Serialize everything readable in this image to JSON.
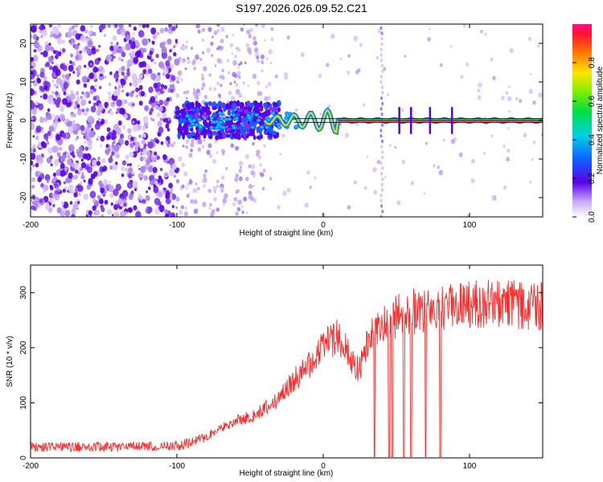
{
  "title": "S197.2026.026.09.52.C21",
  "chart_data": [
    {
      "type": "heatmap",
      "xlabel": "Height of straight line (km)",
      "ylabel": "Frequency (Hz)",
      "xlim": [
        -200,
        150
      ],
      "ylim": [
        -25,
        25
      ],
      "xticks": [
        "-200",
        "-100",
        "0",
        "100"
      ],
      "xtick_values": [
        -200,
        -100,
        0,
        100
      ],
      "yticks": [
        "-20",
        "-10",
        "0",
        "10",
        "20"
      ],
      "ytick_values": [
        -20,
        -10,
        0,
        10,
        20
      ],
      "colorbar": {
        "label": "Normalized spectral amplitude",
        "range": [
          0,
          1
        ],
        "ticks": [
          "0.0",
          "0.2",
          "0.4",
          "0.6",
          "0.8"
        ],
        "tick_values": [
          0,
          0.2,
          0.4,
          0.6,
          0.8
        ]
      },
      "features": {
        "signal_line_frequency_hz": 0,
        "signal_onset_height_km": -100,
        "strong_signal_from_km": -20,
        "interference_spike_km": 40
      }
    },
    {
      "type": "line",
      "xlabel": "Height of straight line (km)",
      "ylabel": "SNR (10 * v/v)",
      "xlim": [
        -200,
        150
      ],
      "ylim": [
        0,
        350
      ],
      "xticks": [
        "-200",
        "-100",
        "0",
        "100"
      ],
      "xtick_values": [
        -200,
        -100,
        0,
        100
      ],
      "yticks": [
        "0",
        "100",
        "200",
        "300"
      ],
      "ytick_values": [
        0,
        100,
        200,
        300
      ],
      "color": "#ff2a2a",
      "series": [
        {
          "name": "SNR",
          "x": [
            -200,
            -150,
            -100,
            -90,
            -80,
            -70,
            -60,
            -50,
            -40,
            -30,
            -20,
            -10,
            0,
            10,
            20,
            25,
            30,
            40,
            50,
            60,
            70,
            80,
            90,
            100,
            110,
            120,
            130,
            140,
            150
          ],
          "values": [
            20,
            20,
            22,
            28,
            38,
            55,
            68,
            75,
            88,
            110,
            140,
            170,
            200,
            220,
            175,
            160,
            210,
            240,
            258,
            265,
            270,
            275,
            275,
            278,
            280,
            280,
            278,
            276,
            275
          ]
        }
      ],
      "dropouts_x": [
        35,
        45,
        47,
        55,
        60,
        70,
        80
      ]
    }
  ]
}
